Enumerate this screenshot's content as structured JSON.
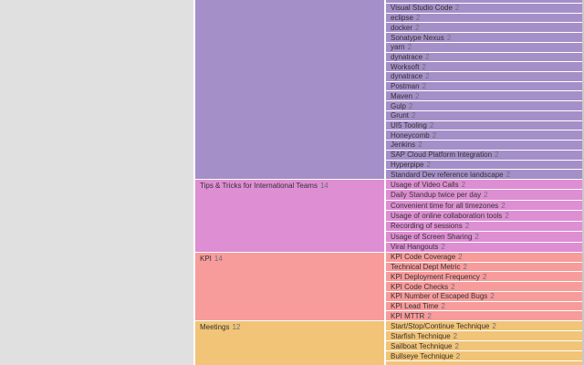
{
  "board": {
    "colors": {
      "background": "#e0e0e0",
      "separator": "#ffffff",
      "text": "#333333",
      "count_text": "#6e6e78",
      "section_purple": "#a58fc8",
      "section_pink": "#de8ed3",
      "section_red": "#f89b9b",
      "section_orange": "#f1c477"
    },
    "sections": [
      {
        "label": "",
        "count": "",
        "color": "#a58fc8",
        "partial_top_row": true,
        "items": [
          {
            "label": "Visual Studio Code",
            "count": "2"
          },
          {
            "label": "eclipse",
            "count": "2"
          },
          {
            "label": "docker",
            "count": "2"
          },
          {
            "label": "Sonatype Nexus",
            "count": "2"
          },
          {
            "label": "yarn",
            "count": "2"
          },
          {
            "label": "dynatrace",
            "count": "2"
          },
          {
            "label": "Worksoft",
            "count": "2"
          },
          {
            "label": "dynatrace",
            "count": "2"
          },
          {
            "label": "Postman",
            "count": "2"
          },
          {
            "label": "Maven",
            "count": "2"
          },
          {
            "label": "Gulp",
            "count": "2"
          },
          {
            "label": "Grunt",
            "count": "2"
          },
          {
            "label": "UI5 Tooling",
            "count": "2"
          },
          {
            "label": "Honeycomb",
            "count": "2"
          },
          {
            "label": "Jenkins",
            "count": "2"
          },
          {
            "label": "SAP Cloud Platform Integration",
            "count": "2"
          },
          {
            "label": "Hyperpipe",
            "count": "2"
          },
          {
            "label": "Standard Dev reference landscape",
            "count": "2"
          }
        ]
      },
      {
        "label": "Tips & Tricks for International Teams",
        "count": "14",
        "color": "#de8ed3",
        "partial_top_row": false,
        "items": [
          {
            "label": "Usage of Video Calls",
            "count": "2"
          },
          {
            "label": "Daily Standup twice per day",
            "count": "2"
          },
          {
            "label": "Convenient time for all timezones",
            "count": "2"
          },
          {
            "label": "Usage of online collaboration tools",
            "count": "2"
          },
          {
            "label": "Recording of sessions",
            "count": "2"
          },
          {
            "label": "Usage of Screen Sharing",
            "count": "2"
          },
          {
            "label": "Viral Hangouts",
            "count": "2"
          }
        ]
      },
      {
        "label": "KPI",
        "count": "14",
        "color": "#f89b9b",
        "partial_top_row": false,
        "items": [
          {
            "label": "KPI Code Coverage",
            "count": "2"
          },
          {
            "label": "Technical Dept Metric",
            "count": "2"
          },
          {
            "label": "KPI Deployment Frequency",
            "count": "2"
          },
          {
            "label": "KPI Code Checks",
            "count": "2"
          },
          {
            "label": "KPI Number of Escaped Bugs",
            "count": "2"
          },
          {
            "label": "KPI Lead Time",
            "count": "2"
          },
          {
            "label": "KPI MTTR",
            "count": "2"
          }
        ]
      },
      {
        "label": "Meetings",
        "count": "12",
        "color": "#f1c477",
        "partial_top_row": false,
        "items": [
          {
            "label": "Start/Stop/Continue Technique",
            "count": "2"
          },
          {
            "label": "Starfish Technique",
            "count": "2"
          },
          {
            "label": "Sailboat Technique",
            "count": "2"
          },
          {
            "label": "Bullseye Technique",
            "count": "2"
          },
          {
            "label": "",
            "count": ""
          }
        ]
      }
    ]
  }
}
